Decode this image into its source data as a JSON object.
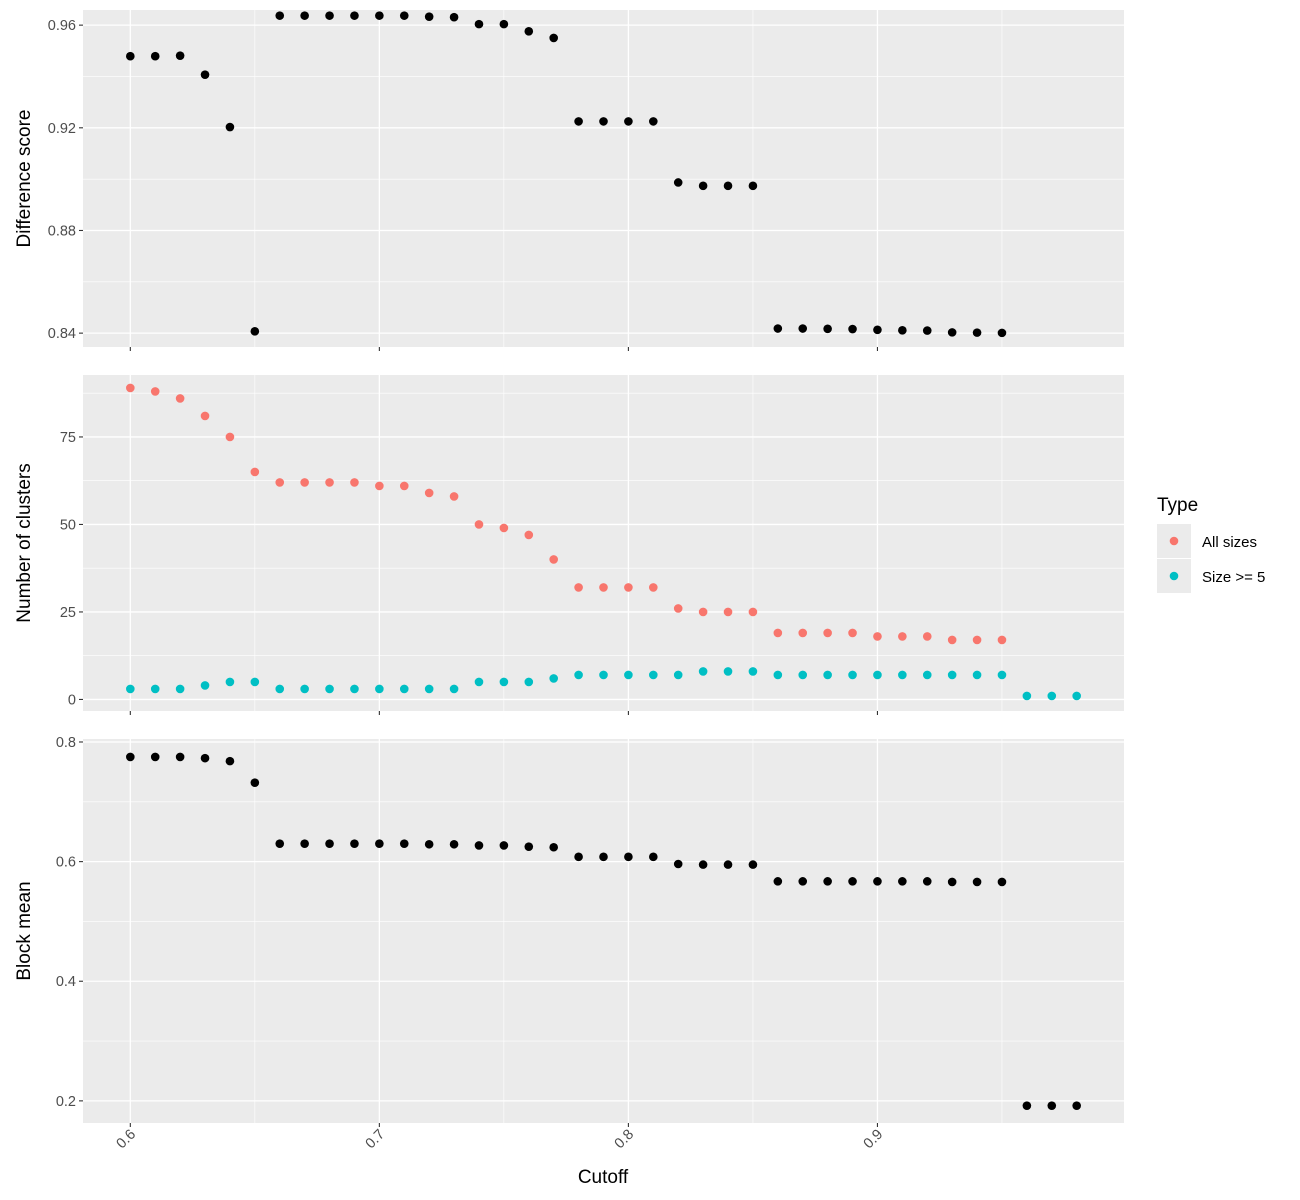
{
  "chart_data": {
    "type": "scatter",
    "xlabel": "Cutoff",
    "xlim": [
      0.581,
      0.999
    ],
    "x_ticks": [
      0.6,
      0.7,
      0.8,
      0.9
    ],
    "x_tick_labels": [
      "0.6",
      "0.7",
      "0.8",
      "0.9"
    ],
    "x_minor_ticks": [
      0.65,
      0.75,
      0.85,
      0.95
    ],
    "x_tick_label_rotation": "-45deg",
    "grid": true,
    "theme": "ggplot2 grey",
    "panels": [
      {
        "id": "difference",
        "ylabel": "Difference score",
        "ylim": [
          0.8346,
          0.9659
        ],
        "y_ticks": [
          0.84,
          0.88,
          0.92,
          0.96
        ],
        "y_tick_labels": [
          "0.84",
          "0.88",
          "0.92",
          "0.96"
        ],
        "y_minor_ticks": [
          0.86,
          0.9,
          0.94
        ],
        "show_x_tick_labels": false,
        "series": [
          {
            "name": "Difference score",
            "color": "#000000",
            "x": [
              0.6,
              0.61,
              0.62,
              0.63,
              0.64,
              0.65,
              0.66,
              0.67,
              0.68,
              0.69,
              0.7,
              0.71,
              0.72,
              0.73,
              0.74,
              0.75,
              0.76,
              0.77,
              0.78,
              0.79,
              0.8,
              0.81,
              0.82,
              0.83,
              0.84,
              0.85,
              0.86,
              0.87,
              0.88,
              0.89,
              0.9,
              0.91,
              0.92,
              0.93,
              0.94,
              0.95
            ],
            "y": [
              0.9479,
              0.9479,
              0.9481,
              0.9407,
              0.9203,
              0.8407,
              0.9637,
              0.9637,
              0.9637,
              0.9637,
              0.9637,
              0.9637,
              0.9633,
              0.9631,
              0.9604,
              0.9604,
              0.9576,
              0.955,
              0.9225,
              0.9225,
              0.9225,
              0.9225,
              0.8987,
              0.8974,
              0.8974,
              0.8974,
              0.8418,
              0.8418,
              0.8417,
              0.8416,
              0.8413,
              0.8411,
              0.841,
              0.8403,
              0.8402,
              0.8401
            ]
          }
        ]
      },
      {
        "id": "clusters",
        "ylabel": "Number of clusters",
        "ylim": [
          -3.3,
          92.7
        ],
        "y_ticks": [
          0,
          25,
          50,
          75
        ],
        "y_tick_labels": [
          "0",
          "25",
          "50",
          "75"
        ],
        "y_minor_ticks": [
          12.5,
          37.5,
          62.5,
          87.5
        ],
        "show_x_tick_labels": false,
        "series": [
          {
            "name": "All sizes",
            "color": "#F8766D",
            "x": [
              0.6,
              0.61,
              0.62,
              0.63,
              0.64,
              0.65,
              0.66,
              0.67,
              0.68,
              0.69,
              0.7,
              0.71,
              0.72,
              0.73,
              0.74,
              0.75,
              0.76,
              0.77,
              0.78,
              0.79,
              0.8,
              0.81,
              0.82,
              0.83,
              0.84,
              0.85,
              0.86,
              0.87,
              0.88,
              0.89,
              0.9,
              0.91,
              0.92,
              0.93,
              0.94,
              0.95
            ],
            "y": [
              89,
              88,
              86,
              81,
              75,
              65,
              62,
              62,
              62,
              62,
              61,
              61,
              59,
              58,
              50,
              49,
              47,
              40,
              32,
              32,
              32,
              32,
              26,
              25,
              25,
              25,
              19,
              19,
              19,
              19,
              18,
              18,
              18,
              17,
              17,
              17
            ]
          },
          {
            "name": "Size >= 5",
            "color": "#00BFC4",
            "x": [
              0.6,
              0.61,
              0.62,
              0.63,
              0.64,
              0.65,
              0.66,
              0.67,
              0.68,
              0.69,
              0.7,
              0.71,
              0.72,
              0.73,
              0.74,
              0.75,
              0.76,
              0.77,
              0.78,
              0.79,
              0.8,
              0.81,
              0.82,
              0.83,
              0.84,
              0.85,
              0.86,
              0.87,
              0.88,
              0.89,
              0.9,
              0.91,
              0.92,
              0.93,
              0.94,
              0.95,
              0.96,
              0.97,
              0.98
            ],
            "y": [
              3,
              3,
              3,
              4,
              5,
              5,
              3,
              3,
              3,
              3,
              3,
              3,
              3,
              3,
              5,
              5,
              5,
              6,
              7,
              7,
              7,
              7,
              7,
              8,
              8,
              8,
              7,
              7,
              7,
              7,
              7,
              7,
              7,
              7,
              7,
              7,
              1,
              1,
              1
            ]
          }
        ]
      },
      {
        "id": "blockmean",
        "ylabel": "Block mean",
        "ylim": [
          0.163,
          0.805
        ],
        "y_ticks": [
          0.2,
          0.4,
          0.6,
          0.8
        ],
        "y_tick_labels": [
          "0.2",
          "0.4",
          "0.6",
          "0.8"
        ],
        "y_minor_ticks": [
          0.3,
          0.5,
          0.7
        ],
        "show_x_tick_labels": true,
        "series": [
          {
            "name": "Block mean",
            "color": "#000000",
            "x": [
              0.6,
              0.61,
              0.62,
              0.63,
              0.64,
              0.65,
              0.66,
              0.67,
              0.68,
              0.69,
              0.7,
              0.71,
              0.72,
              0.73,
              0.74,
              0.75,
              0.76,
              0.77,
              0.78,
              0.79,
              0.8,
              0.81,
              0.82,
              0.83,
              0.84,
              0.85,
              0.86,
              0.87,
              0.88,
              0.89,
              0.9,
              0.91,
              0.92,
              0.93,
              0.94,
              0.95,
              0.96,
              0.97,
              0.98
            ],
            "y": [
              0.775,
              0.775,
              0.775,
              0.773,
              0.768,
              0.732,
              0.63,
              0.63,
              0.63,
              0.63,
              0.63,
              0.63,
              0.629,
              0.629,
              0.627,
              0.627,
              0.625,
              0.624,
              0.608,
              0.608,
              0.608,
              0.608,
              0.596,
              0.595,
              0.595,
              0.595,
              0.567,
              0.567,
              0.567,
              0.567,
              0.567,
              0.567,
              0.567,
              0.566,
              0.566,
              0.566,
              0.192,
              0.192,
              0.192
            ]
          }
        ]
      }
    ],
    "legend": {
      "title": "Type",
      "placement": "right",
      "entries": [
        {
          "label": "All sizes",
          "color": "#F8766D"
        },
        {
          "label": "Size >= 5",
          "color": "#00BFC4"
        }
      ]
    }
  }
}
